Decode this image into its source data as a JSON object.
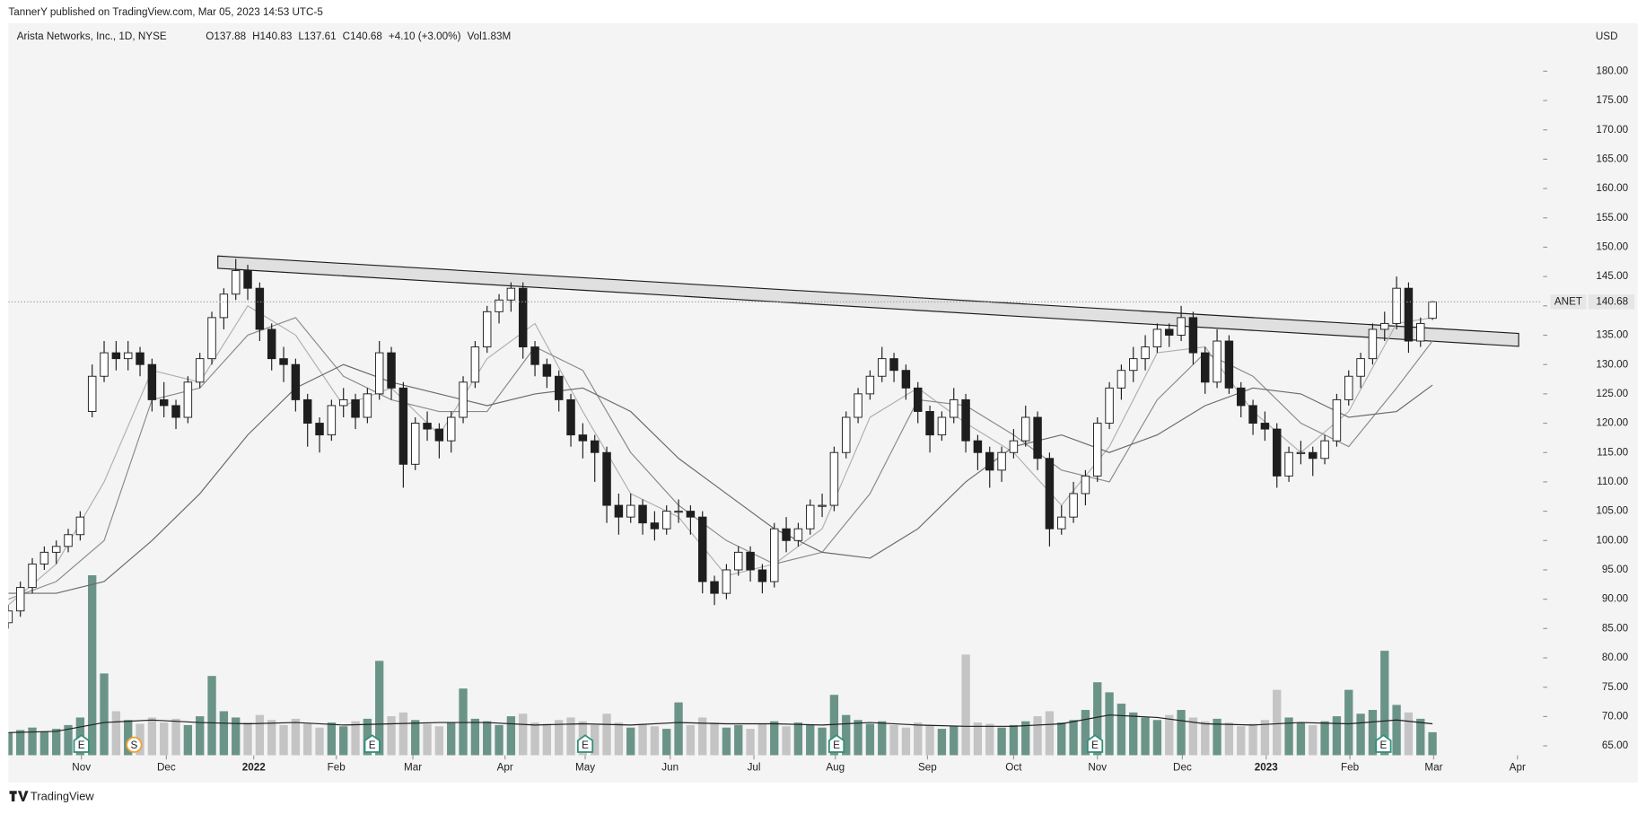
{
  "header": "TannerY published on TradingView.com, Mar 05, 2023 14:53 UTC-5",
  "footer": "TradingView",
  "chart_data": {
    "type": "candlestick",
    "title": "Arista Networks, Inc., 1D, NYSE",
    "legend": [
      "O137.88",
      "H140.83",
      "L137.61",
      "C140.68",
      "+4.10 (+3.00%)",
      "Vol1.83M"
    ],
    "currency": "USD",
    "symbol": "ANET",
    "up_color": "#ffffff",
    "down_color": "#1e1e1e",
    "outline_color": "#1e1e1e",
    "volume_up_color": "#6b9488",
    "volume_down_color": "#c4c4c4",
    "volume_ma_color": "#1e1e1e",
    "ylim": [
      63.4,
      188.2
    ],
    "yticks": [
      {
        "value": 65,
        "label": "65.00"
      },
      {
        "value": 70,
        "label": "70.00"
      },
      {
        "value": 75,
        "label": "75.00"
      },
      {
        "value": 80,
        "label": "80.00"
      },
      {
        "value": 85,
        "label": "85.00"
      },
      {
        "value": 90,
        "label": "90.00"
      },
      {
        "value": 95,
        "label": "95.00"
      },
      {
        "value": 100,
        "label": "100.00"
      },
      {
        "value": 105,
        "label": "105.00"
      },
      {
        "value": 110,
        "label": "110.00"
      },
      {
        "value": 115,
        "label": "115.00"
      },
      {
        "value": 120,
        "label": "120.00"
      },
      {
        "value": 125,
        "label": "125.00"
      },
      {
        "value": 130,
        "label": "130.00"
      },
      {
        "value": 135,
        "label": "135.00"
      },
      {
        "value": 140,
        "label": "140.00"
      },
      {
        "value": 145,
        "label": "145.00"
      },
      {
        "value": 150,
        "label": "150.00"
      },
      {
        "value": 155,
        "label": "155.00"
      },
      {
        "value": 160,
        "label": "160.00"
      },
      {
        "value": 165,
        "label": "165.00"
      },
      {
        "value": 170,
        "label": "170.00"
      },
      {
        "value": 175,
        "label": "175.00"
      },
      {
        "value": 180,
        "label": "180.00"
      }
    ],
    "xlim": [
      0,
      128.07
    ],
    "xticks": [
      {
        "value": 6.1,
        "label": "Nov"
      },
      {
        "value": 13.2,
        "label": "Dec"
      },
      {
        "value": 20.5,
        "label": "2022"
      },
      {
        "value": 27.4,
        "label": "Feb"
      },
      {
        "value": 33.8,
        "label": "Mar"
      },
      {
        "value": 41.5,
        "label": "Apr"
      },
      {
        "value": 48.2,
        "label": "May"
      },
      {
        "value": 55.3,
        "label": "Jun"
      },
      {
        "value": 62.3,
        "label": "Jul"
      },
      {
        "value": 69.1,
        "label": "Aug"
      },
      {
        "value": 76.8,
        "label": "Sep"
      },
      {
        "value": 84.0,
        "label": "Oct"
      },
      {
        "value": 91.0,
        "label": "Nov"
      },
      {
        "value": 98.1,
        "label": "Dec"
      },
      {
        "value": 105.1,
        "label": "2023"
      },
      {
        "value": 112.1,
        "label": "Feb"
      },
      {
        "value": 119.1,
        "label": "Mar"
      },
      {
        "value": 126.1,
        "label": "Apr"
      }
    ],
    "candles": [
      [
        86,
        89,
        85,
        88
      ],
      [
        88,
        93,
        87,
        92
      ],
      [
        92,
        97,
        91,
        96
      ],
      [
        96,
        99,
        95,
        98
      ],
      [
        98,
        100,
        96,
        99
      ],
      [
        99,
        102,
        98,
        101
      ],
      [
        101,
        105,
        100,
        104
      ],
      [
        122,
        130,
        121,
        128
      ],
      [
        128,
        134,
        127,
        132
      ],
      [
        132,
        134,
        129,
        131
      ],
      [
        131,
        134,
        129,
        132
      ],
      [
        132,
        133,
        128,
        130
      ],
      [
        130,
        131,
        122,
        124
      ],
      [
        124,
        127,
        121,
        123
      ],
      [
        123,
        124,
        119,
        121
      ],
      [
        121,
        128,
        120,
        127
      ],
      [
        127,
        132,
        126,
        131
      ],
      [
        131,
        139,
        130,
        138
      ],
      [
        138,
        143,
        136,
        142
      ],
      [
        142,
        148,
        141,
        146
      ],
      [
        146,
        147,
        141,
        143
      ],
      [
        143,
        144,
        134,
        136
      ],
      [
        136,
        137,
        129,
        131
      ],
      [
        131,
        133,
        127,
        130
      ],
      [
        130,
        131,
        122,
        124
      ],
      [
        124,
        125,
        116,
        120
      ],
      [
        120,
        121,
        115,
        118
      ],
      [
        118,
        124,
        117,
        123
      ],
      [
        123,
        126,
        121,
        124
      ],
      [
        124,
        125,
        119,
        121
      ],
      [
        121,
        126,
        120,
        125
      ],
      [
        125,
        134,
        124,
        132
      ],
      [
        132,
        133,
        124,
        126
      ],
      [
        126,
        127,
        109,
        113
      ],
      [
        113,
        121,
        112,
        120
      ],
      [
        120,
        122,
        117,
        119
      ],
      [
        119,
        120,
        114,
        117
      ],
      [
        117,
        122,
        115,
        121
      ],
      [
        121,
        128,
        120,
        127
      ],
      [
        127,
        134,
        126,
        133
      ],
      [
        133,
        140,
        132,
        139
      ],
      [
        139,
        142,
        137,
        141
      ],
      [
        141,
        144,
        139,
        143
      ],
      [
        143,
        144,
        131,
        133
      ],
      [
        133,
        134,
        128,
        130
      ],
      [
        130,
        131,
        126,
        128
      ],
      [
        128,
        129,
        122,
        124
      ],
      [
        124,
        125,
        116,
        118
      ],
      [
        118,
        120,
        114,
        117
      ],
      [
        117,
        118,
        110,
        115
      ],
      [
        115,
        116,
        103,
        106
      ],
      [
        106,
        108,
        101,
        104
      ],
      [
        104,
        108,
        103,
        106
      ],
      [
        106,
        107,
        101,
        103
      ],
      [
        103,
        105,
        100,
        102
      ],
      [
        102,
        106,
        101,
        105
      ],
      [
        105,
        107,
        103,
        105
      ],
      [
        105,
        106,
        101,
        104
      ],
      [
        104,
        105,
        91,
        93
      ],
      [
        93,
        94,
        89,
        91
      ],
      [
        91,
        96,
        90,
        95
      ],
      [
        95,
        99,
        94,
        98
      ],
      [
        98,
        99,
        93,
        95
      ],
      [
        95,
        96,
        91,
        93
      ],
      [
        93,
        103,
        92,
        102
      ],
      [
        102,
        104,
        98,
        100
      ],
      [
        100,
        103,
        99,
        102
      ],
      [
        102,
        107,
        101,
        106
      ],
      [
        106,
        108,
        104,
        106
      ],
      [
        106,
        116,
        105,
        115
      ],
      [
        115,
        122,
        114,
        121
      ],
      [
        121,
        126,
        120,
        125
      ],
      [
        125,
        129,
        124,
        128
      ],
      [
        128,
        133,
        127,
        131
      ],
      [
        131,
        132,
        127,
        129
      ],
      [
        129,
        130,
        124,
        126
      ],
      [
        126,
        127,
        120,
        122
      ],
      [
        122,
        123,
        115,
        118
      ],
      [
        118,
        122,
        117,
        121
      ],
      [
        121,
        126,
        120,
        124
      ],
      [
        124,
        125,
        115,
        117
      ],
      [
        117,
        118,
        112,
        115
      ],
      [
        115,
        116,
        109,
        112
      ],
      [
        112,
        116,
        110,
        115
      ],
      [
        115,
        119,
        114,
        117
      ],
      [
        117,
        123,
        116,
        121
      ],
      [
        121,
        122,
        112,
        114
      ],
      [
        114,
        115,
        99,
        102
      ],
      [
        102,
        106,
        101,
        104
      ],
      [
        104,
        110,
        103,
        108
      ],
      [
        108,
        112,
        106,
        111
      ],
      [
        111,
        121,
        110,
        120
      ],
      [
        120,
        127,
        119,
        126
      ],
      [
        126,
        130,
        124,
        129
      ],
      [
        129,
        133,
        127,
        131
      ],
      [
        131,
        135,
        129,
        133
      ],
      [
        133,
        137,
        132,
        136
      ],
      [
        136,
        137,
        133,
        135
      ],
      [
        135,
        140,
        134,
        138
      ],
      [
        138,
        139,
        130,
        132
      ],
      [
        132,
        133,
        125,
        127
      ],
      [
        127,
        136,
        126,
        134
      ],
      [
        134,
        135,
        125,
        126
      ],
      [
        126,
        127,
        121,
        123
      ],
      [
        123,
        124,
        118,
        120
      ],
      [
        120,
        122,
        117,
        119
      ],
      [
        119,
        120,
        109,
        111
      ],
      [
        111,
        116,
        110,
        115
      ],
      [
        115,
        117,
        113,
        115
      ],
      [
        115,
        116,
        111,
        114
      ],
      [
        114,
        118,
        113,
        117
      ],
      [
        117,
        125,
        116,
        124
      ],
      [
        124,
        129,
        123,
        128
      ],
      [
        128,
        132,
        126,
        131
      ],
      [
        131,
        137,
        130,
        136
      ],
      [
        136,
        139,
        134,
        137
      ],
      [
        137,
        145,
        136,
        143
      ],
      [
        143,
        144,
        132,
        134
      ],
      [
        134,
        138,
        133,
        137
      ],
      [
        137.88,
        140.83,
        137.61,
        140.68
      ]
    ],
    "vlim": [
      0,
      15
    ],
    "volume": [
      1.8,
      2.0,
      2.2,
      1.9,
      2.1,
      2.4,
      3.0,
      14.3,
      6.5,
      3.5,
      2.8,
      2.5,
      3.0,
      2.6,
      2.9,
      2.4,
      3.1,
      6.3,
      3.5,
      3.0,
      2.6,
      3.2,
      2.8,
      2.4,
      2.9,
      2.5,
      2.2,
      2.6,
      2.3,
      2.7,
      2.9,
      7.5,
      3.1,
      3.4,
      2.8,
      2.5,
      2.3,
      2.6,
      5.3,
      2.9,
      2.7,
      2.4,
      3.1,
      3.3,
      2.6,
      2.5,
      2.8,
      3.0,
      2.7,
      2.4,
      3.3,
      2.6,
      2.2,
      2.5,
      2.3,
      2.1,
      4.2,
      2.4,
      3.0,
      2.6,
      2.2,
      2.4,
      2.1,
      2.5,
      2.7,
      2.3,
      2.6,
      2.4,
      2.2,
      4.8,
      3.2,
      2.8,
      2.5,
      2.7,
      2.4,
      2.2,
      2.6,
      2.4,
      2.1,
      2.3,
      8.0,
      2.6,
      2.5,
      2.2,
      2.4,
      2.7,
      3.1,
      3.5,
      2.6,
      2.8,
      3.6,
      5.8,
      5.0,
      4.1,
      3.4,
      3.0,
      2.8,
      3.2,
      3.6,
      3.0,
      2.7,
      2.9,
      2.6,
      2.3,
      2.5,
      2.8,
      5.2,
      3.0,
      2.6,
      2.4,
      2.7,
      3.1,
      5.2,
      3.3,
      3.6,
      8.3,
      4.0,
      3.4,
      2.9,
      1.83
    ],
    "ma_x": [
      0,
      4,
      8,
      12,
      16,
      20,
      24,
      28,
      32,
      36,
      40,
      44,
      48,
      52,
      56,
      60,
      64,
      68,
      72,
      76,
      80,
      84,
      88,
      92,
      96,
      100,
      104,
      108,
      112,
      116,
      119
    ],
    "moving_averages": [
      {
        "color": "#b0b0b0",
        "values": [
          89,
          96,
          110,
          129,
          127,
          140,
          135,
          123,
          126,
          118,
          131,
          137,
          122,
          108,
          104,
          94,
          96,
          102,
          121,
          126,
          120,
          115,
          106,
          116,
          132,
          133,
          122,
          115,
          122,
          137,
          138
        ]
      },
      {
        "color": "#8a8a8a",
        "values": [
          90,
          93,
          100,
          124,
          126,
          135,
          138,
          128,
          124,
          122,
          122,
          133,
          129,
          115,
          106,
          100,
          96,
          98,
          108,
          124,
          123,
          118,
          112,
          110,
          124,
          132,
          128,
          120,
          116,
          126,
          134
        ]
      },
      {
        "color": "#6a6a6a",
        "values": [
          91,
          91,
          93,
          100,
          108,
          118,
          126,
          130,
          127,
          125,
          123,
          125,
          126,
          122,
          114,
          108,
          102,
          98,
          97,
          102,
          110,
          116,
          118,
          115,
          118,
          123,
          126,
          125,
          121,
          122,
          126.5
        ]
      }
    ],
    "volume_ma": [
      1.8,
      1.9,
      2.6,
      2.8,
      2.6,
      2.5,
      2.6,
      2.4,
      2.5,
      2.6,
      2.6,
      2.4,
      2.5,
      2.4,
      2.6,
      2.5,
      2.5,
      2.4,
      2.6,
      2.4,
      2.3,
      2.3,
      2.5,
      3.2,
      3.0,
      2.5,
      2.4,
      2.6,
      2.5,
      2.8,
      2.5
    ],
    "channel": {
      "x": [
        17.5,
        126.2
      ],
      "upper": [
        148.5,
        135.3
      ],
      "lower": [
        146.4,
        133.1
      ],
      "color": "#dcdcdc"
    },
    "events": [
      {
        "x": 6.1,
        "label": "E"
      },
      {
        "x": 10.5,
        "label": "S"
      },
      {
        "x": 30.4,
        "label": "E"
      },
      {
        "x": 48.2,
        "label": "E"
      },
      {
        "x": 69.2,
        "label": "E"
      },
      {
        "x": 90.8,
        "label": "E"
      },
      {
        "x": 114.9,
        "label": "E"
      }
    ]
  }
}
